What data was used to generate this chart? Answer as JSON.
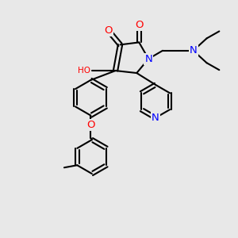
{
  "bg_color": "#e8e8e8",
  "bond_color": "#000000",
  "bond_width": 1.5,
  "atom_colors": {
    "O": "#ff0000",
    "N": "#0000ff",
    "C": "#000000"
  },
  "font_size": 7.5,
  "figsize": [
    3.0,
    3.0
  ],
  "dpi": 100,
  "xlim": [
    0,
    10
  ],
  "ylim": [
    0,
    10
  ]
}
